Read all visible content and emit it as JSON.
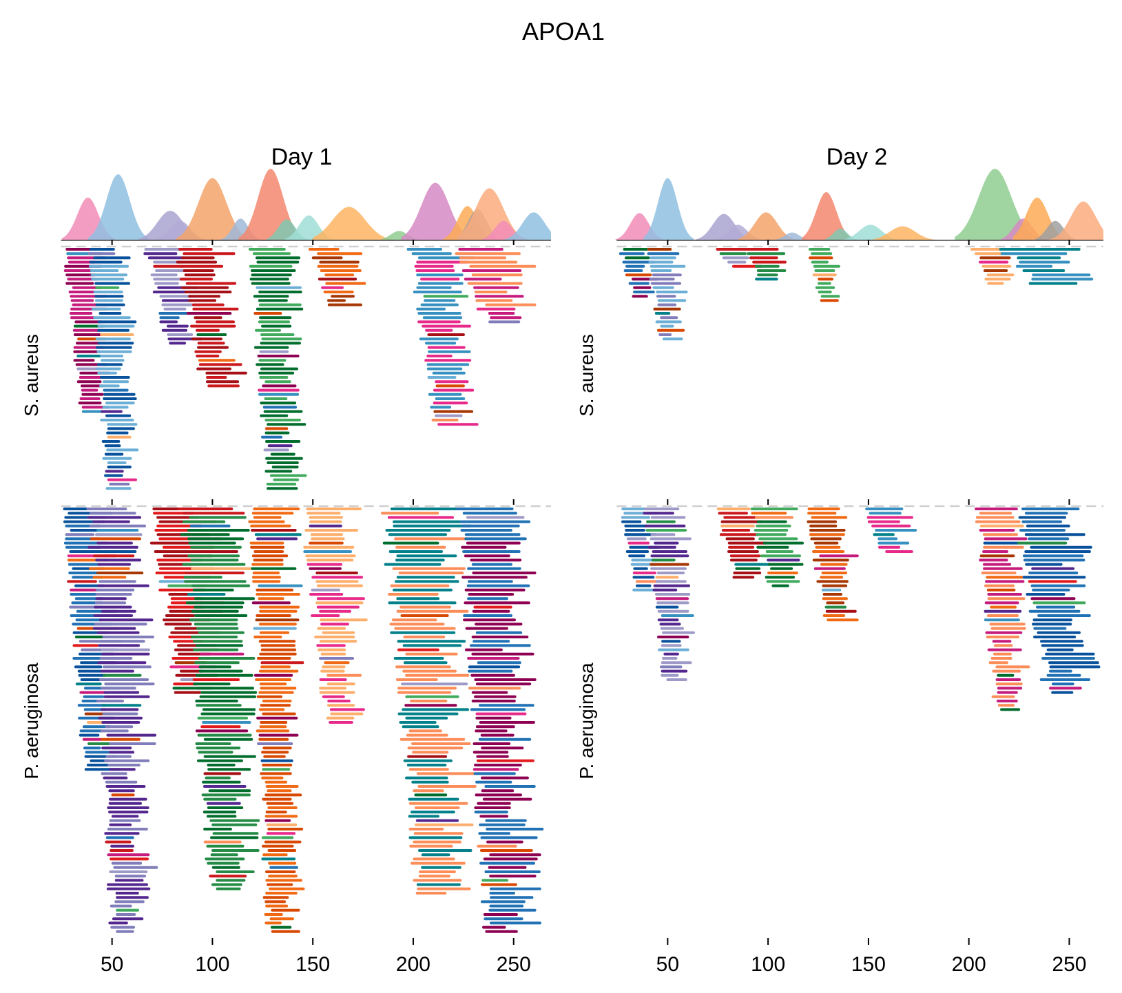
{
  "chart_data": {
    "type": "peptide-coverage",
    "title": "APOA1",
    "columns": [
      "Day 1",
      "Day 2"
    ],
    "rows": [
      "S. aureus",
      "P. aeruginosa"
    ],
    "x_ticks": [
      50,
      100,
      150,
      200,
      250
    ],
    "xlim": [
      0,
      265
    ],
    "grid": false,
    "peak_colors": [
      "#f28cb8",
      "#8fbfe0",
      "#a9a3d0",
      "#b3acd6",
      "#f5a36a",
      "#9fb8d8",
      "#f4876e",
      "#7fc8b0",
      "#9fded6",
      "#fdb462",
      "#8fcc8f",
      "#d689c4",
      "#fdaa55",
      "#a0a0a0",
      "#fcac7c"
    ],
    "peptide_colors": [
      "#c51b7d",
      "#8e0152",
      "#2171b5",
      "#08519c",
      "#6baed6",
      "#807dba",
      "#54278f",
      "#9e9ac8",
      "#e31a1c",
      "#a50f15",
      "#cb181d",
      "#238b45",
      "#006d2c",
      "#41ab5d",
      "#d94801",
      "#f16913",
      "#a63603",
      "#fdae6b",
      "#e7298a",
      "#3690c0",
      "#02818a",
      "#fc8d59"
    ],
    "coverage_profile": {
      "Day 1": [
        {
          "center": 38,
          "start": 25,
          "end": 52,
          "height": 0.55
        },
        {
          "center": 53,
          "start": 38,
          "end": 68,
          "height": 0.85
        },
        {
          "center": 79,
          "start": 63,
          "end": 96,
          "height": 0.38
        },
        {
          "center": 84,
          "start": 72,
          "end": 98,
          "height": 0.25
        },
        {
          "center": 100,
          "start": 82,
          "end": 118,
          "height": 0.8
        },
        {
          "center": 114,
          "start": 104,
          "end": 124,
          "height": 0.28
        },
        {
          "center": 129,
          "start": 113,
          "end": 145,
          "height": 0.92
        },
        {
          "center": 137,
          "start": 127,
          "end": 149,
          "height": 0.27
        },
        {
          "center": 148,
          "start": 136,
          "end": 161,
          "height": 0.32
        },
        {
          "center": 168,
          "start": 150,
          "end": 192,
          "height": 0.43
        },
        {
          "center": 193,
          "start": 184,
          "end": 206,
          "height": 0.12
        },
        {
          "center": 211,
          "start": 194,
          "end": 230,
          "height": 0.74
        },
        {
          "center": 227,
          "start": 215,
          "end": 240,
          "height": 0.44
        },
        {
          "center": 232,
          "start": 222,
          "end": 246,
          "height": 0.4
        },
        {
          "center": 238,
          "start": 222,
          "end": 258,
          "height": 0.67
        },
        {
          "center": 245,
          "start": 234,
          "end": 257,
          "height": 0.25
        },
        {
          "center": 260,
          "start": 245,
          "end": 274,
          "height": 0.36
        }
      ],
      "Day 2": [
        {
          "center": 36,
          "start": 24,
          "end": 48,
          "height": 0.35
        },
        {
          "center": 50,
          "start": 38,
          "end": 63,
          "height": 0.8
        },
        {
          "center": 78,
          "start": 64,
          "end": 92,
          "height": 0.34
        },
        {
          "center": 85,
          "start": 75,
          "end": 99,
          "height": 0.2
        },
        {
          "center": 99,
          "start": 85,
          "end": 114,
          "height": 0.36
        },
        {
          "center": 112,
          "start": 103,
          "end": 122,
          "height": 0.1
        },
        {
          "center": 129,
          "start": 117,
          "end": 143,
          "height": 0.62
        },
        {
          "center": 136,
          "start": 128,
          "end": 146,
          "height": 0.15
        },
        {
          "center": 151,
          "start": 136,
          "end": 165,
          "height": 0.2
        },
        {
          "center": 167,
          "start": 152,
          "end": 185,
          "height": 0.18
        },
        {
          "center": 213,
          "start": 193,
          "end": 235,
          "height": 0.92
        },
        {
          "center": 227,
          "start": 216,
          "end": 240,
          "height": 0.28
        },
        {
          "center": 234,
          "start": 222,
          "end": 250,
          "height": 0.55
        },
        {
          "center": 243,
          "start": 233,
          "end": 255,
          "height": 0.25
        },
        {
          "center": 257,
          "start": 240,
          "end": 272,
          "height": 0.5
        }
      ]
    },
    "peptide_clusters": {
      "S. aureus|Day 1": [
        {
          "start": 27,
          "end": 52,
          "peptides": 39
        },
        {
          "start": 40,
          "end": 65,
          "peptides": 58
        },
        {
          "start": 68,
          "end": 97,
          "peptides": 23
        },
        {
          "start": 84,
          "end": 118,
          "peptides": 33
        },
        {
          "start": 120,
          "end": 150,
          "peptides": 67
        },
        {
          "start": 150,
          "end": 180,
          "peptides": 14
        },
        {
          "start": 200,
          "end": 235,
          "peptides": 42
        },
        {
          "start": 222,
          "end": 266,
          "peptides": 18
        }
      ],
      "S. aureus|Day 2": [
        {
          "start": 27,
          "end": 48,
          "peptides": 12
        },
        {
          "start": 40,
          "end": 62,
          "peptides": 22
        },
        {
          "start": 75,
          "end": 98,
          "peptides": 5
        },
        {
          "start": 88,
          "end": 112,
          "peptides": 8
        },
        {
          "start": 121,
          "end": 138,
          "peptides": 13
        },
        {
          "start": 203,
          "end": 225,
          "peptides": 9
        },
        {
          "start": 218,
          "end": 267,
          "peptides": 9
        }
      ],
      "P. aeruginosa|Day 1": [
        {
          "start": 27,
          "end": 58,
          "peptides": 62
        },
        {
          "start": 40,
          "end": 75,
          "peptides": 107
        },
        {
          "start": 70,
          "end": 110,
          "peptides": 44
        },
        {
          "start": 86,
          "end": 126,
          "peptides": 90
        },
        {
          "start": 120,
          "end": 148,
          "peptides": 117
        },
        {
          "start": 146,
          "end": 180,
          "peptides": 51
        },
        {
          "start": 187,
          "end": 235,
          "peptides": 91
        },
        {
          "start": 225,
          "end": 268,
          "peptides": 118
        }
      ],
      "P. aeruginosa|Day 2": [
        {
          "start": 27,
          "end": 48,
          "peptides": 20
        },
        {
          "start": 40,
          "end": 66,
          "peptides": 41
        },
        {
          "start": 75,
          "end": 105,
          "peptides": 17
        },
        {
          "start": 92,
          "end": 122,
          "peptides": 19
        },
        {
          "start": 120,
          "end": 148,
          "peptides": 27
        },
        {
          "start": 148,
          "end": 177,
          "peptides": 11
        },
        {
          "start": 205,
          "end": 232,
          "peptides": 48
        },
        {
          "start": 225,
          "end": 268,
          "peptides": 44
        }
      ]
    }
  }
}
